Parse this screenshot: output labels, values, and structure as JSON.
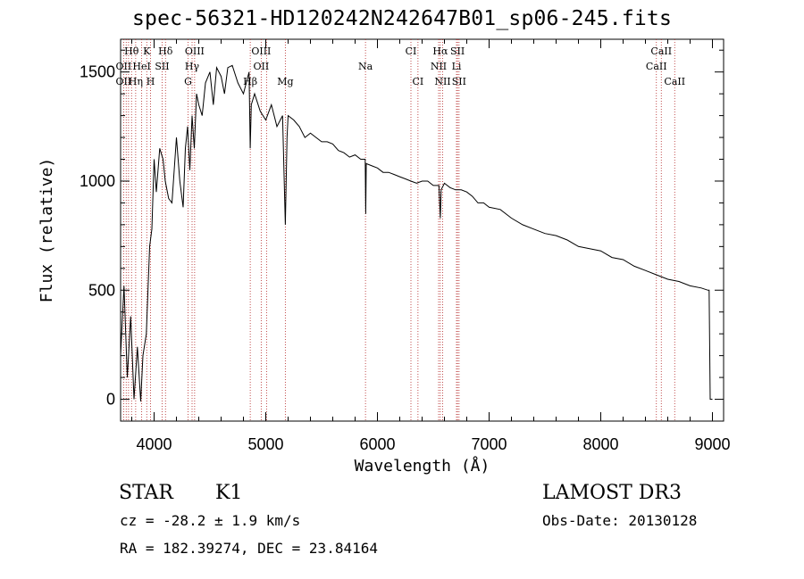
{
  "chart_data": {
    "type": "line",
    "title": "spec-56321-HD120242N242647B01_sp06-245.fits",
    "xlabel": "Wavelength (Å)",
    "ylabel": "Flux (relative)",
    "xlim": [
      3700,
      9100
    ],
    "ylim": [
      -100,
      1650
    ],
    "xticks": [
      4000,
      5000,
      6000,
      7000,
      8000,
      9000
    ],
    "yticks": [
      0,
      500,
      1000,
      1500
    ],
    "series": [
      {
        "name": "flux",
        "x": [
          3700,
          3730,
          3760,
          3790,
          3820,
          3850,
          3880,
          3900,
          3930,
          3960,
          3980,
          4000,
          4020,
          4050,
          4080,
          4100,
          4130,
          4160,
          4200,
          4230,
          4260,
          4280,
          4300,
          4320,
          4340,
          4360,
          4380,
          4400,
          4430,
          4460,
          4500,
          4530,
          4560,
          4600,
          4630,
          4660,
          4700,
          4750,
          4800,
          4850,
          4861,
          4870,
          4900,
          4950,
          5000,
          5050,
          5100,
          5150,
          5175,
          5190,
          5200,
          5250,
          5300,
          5350,
          5400,
          5450,
          5500,
          5550,
          5600,
          5650,
          5700,
          5750,
          5800,
          5850,
          5890,
          5895,
          5900,
          5950,
          6000,
          6050,
          6100,
          6150,
          6200,
          6250,
          6300,
          6350,
          6400,
          6450,
          6500,
          6550,
          6563,
          6570,
          6600,
          6650,
          6700,
          6750,
          6800,
          6850,
          6900,
          6950,
          7000,
          7100,
          7200,
          7300,
          7400,
          7500,
          7600,
          7700,
          7800,
          7900,
          8000,
          8100,
          8200,
          8300,
          8400,
          8500,
          8600,
          8700,
          8800,
          8900,
          8960,
          8970,
          8980,
          9000
        ],
        "values": [
          200,
          520,
          100,
          380,
          0,
          240,
          -10,
          200,
          300,
          700,
          780,
          1100,
          950,
          1150,
          1100,
          1000,
          920,
          900,
          1200,
          1000,
          880,
          1150,
          1250,
          1050,
          1300,
          1150,
          1400,
          1350,
          1300,
          1450,
          1500,
          1350,
          1520,
          1480,
          1400,
          1520,
          1530,
          1450,
          1400,
          1500,
          1150,
          1350,
          1400,
          1320,
          1280,
          1350,
          1250,
          1300,
          800,
          1200,
          1300,
          1280,
          1250,
          1200,
          1220,
          1200,
          1180,
          1180,
          1170,
          1140,
          1130,
          1110,
          1120,
          1100,
          1100,
          850,
          1080,
          1070,
          1060,
          1040,
          1040,
          1030,
          1020,
          1010,
          1000,
          990,
          1000,
          1000,
          980,
          980,
          830,
          960,
          990,
          970,
          960,
          960,
          950,
          930,
          900,
          900,
          880,
          870,
          830,
          800,
          780,
          760,
          750,
          730,
          700,
          690,
          680,
          650,
          640,
          610,
          590,
          570,
          550,
          540,
          520,
          510,
          500,
          500,
          0,
          0
        ]
      }
    ],
    "line_markers": [
      {
        "label": "Hθ",
        "wavelength": 3798,
        "row": 1
      },
      {
        "label": "K",
        "wavelength": 3934,
        "row": 1
      },
      {
        "label": "Hδ",
        "wavelength": 4102,
        "row": 1
      },
      {
        "label": "OIII",
        "wavelength": 4363,
        "row": 1
      },
      {
        "label": "OIII",
        "wavelength": 4959,
        "row": 1
      },
      {
        "label": "CI",
        "wavelength": 6300,
        "row": 1
      },
      {
        "label": "Hα",
        "wavelength": 6563,
        "row": 1
      },
      {
        "label": "SII",
        "wavelength": 6717,
        "row": 1
      },
      {
        "label": "CaII",
        "wavelength": 8542,
        "row": 1
      },
      {
        "label": "OII",
        "wavelength": 3727,
        "row": 2
      },
      {
        "label": "HeI",
        "wavelength": 3889,
        "row": 2
      },
      {
        "label": "SII",
        "wavelength": 4072,
        "row": 2
      },
      {
        "label": "Hγ",
        "wavelength": 4340,
        "row": 2
      },
      {
        "label": "OII",
        "wavelength": 4959,
        "row": 2
      },
      {
        "label": "Na",
        "wavelength": 5893,
        "row": 2
      },
      {
        "label": "NII",
        "wavelength": 6548,
        "row": 2
      },
      {
        "label": "Li",
        "wavelength": 6708,
        "row": 2
      },
      {
        "label": "CaII",
        "wavelength": 8498,
        "row": 2
      },
      {
        "label": "OII",
        "wavelength": 3727,
        "row": 3
      },
      {
        "label": "Hη",
        "wavelength": 3835,
        "row": 3
      },
      {
        "label": "H",
        "wavelength": 3968,
        "row": 3
      },
      {
        "label": "G",
        "wavelength": 4304,
        "row": 3
      },
      {
        "label": "Hβ",
        "wavelength": 4861,
        "row": 3
      },
      {
        "label": "Mg",
        "wavelength": 5175,
        "row": 3
      },
      {
        "label": "CI",
        "wavelength": 6363,
        "row": 3
      },
      {
        "label": "NII",
        "wavelength": 6584,
        "row": 3
      },
      {
        "label": "SII",
        "wavelength": 6731,
        "row": 3
      },
      {
        "label": "CaII",
        "wavelength": 8662,
        "row": 3
      }
    ],
    "marker_wavelengths": [
      3727,
      3750,
      3771,
      3798,
      3835,
      3889,
      3934,
      3968,
      4072,
      4102,
      4304,
      4340,
      4363,
      4861,
      4959,
      5007,
      5175,
      5893,
      6300,
      6363,
      6548,
      6563,
      6584,
      6708,
      6717,
      6731,
      8498,
      8542,
      8662
    ],
    "colors": {
      "spectrum": "#000000",
      "marker_line": "#b22222",
      "axes": "#000000"
    }
  },
  "info": {
    "class": "STAR",
    "subclass": "K1",
    "survey": "LAMOST DR3",
    "cz": "cz = -28.2 ± 1.9 km/s",
    "obs_date": "Obs-Date: 20130128",
    "radec": "RA = 182.39274, DEC =  23.84164"
  }
}
